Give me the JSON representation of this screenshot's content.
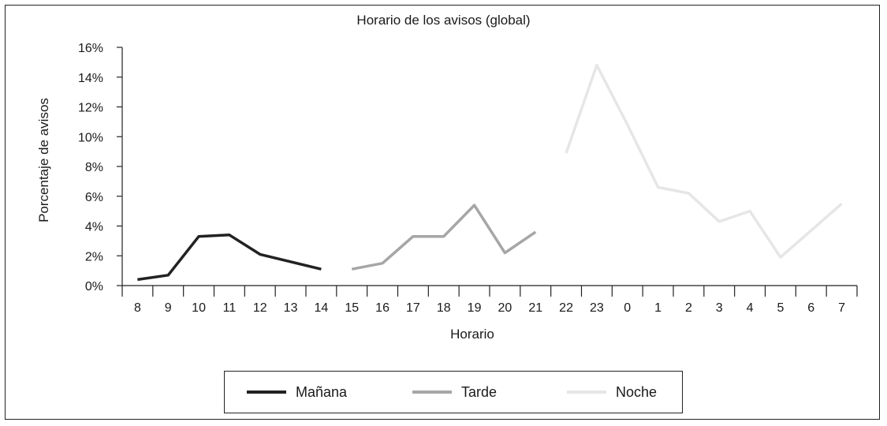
{
  "chart_data": {
    "type": "line",
    "title": "Horario de los avisos (global)",
    "xlabel": "Horario",
    "ylabel": "Porcentaje de avisos",
    "categories": [
      "8",
      "9",
      "10",
      "11",
      "12",
      "13",
      "14",
      "15",
      "16",
      "17",
      "18",
      "19",
      "20",
      "21",
      "22",
      "23",
      "0",
      "1",
      "2",
      "3",
      "4",
      "5",
      "6",
      "7"
    ],
    "ylim": [
      0,
      16
    ],
    "yticks": [
      "0%",
      "2%",
      "4%",
      "6%",
      "8%",
      "10%",
      "12%",
      "14%",
      "16%"
    ],
    "grid": false,
    "legend_position": "bottom",
    "series": [
      {
        "name": "Mañana",
        "color": "#222222",
        "points": [
          [
            "8",
            0.4
          ],
          [
            "9",
            0.7
          ],
          [
            "10",
            3.3
          ],
          [
            "11",
            3.4
          ],
          [
            "12",
            2.1
          ],
          [
            "13",
            1.6
          ],
          [
            "14",
            1.1
          ]
        ]
      },
      {
        "name": "Tarde",
        "color": "#a6a6a6",
        "points": [
          [
            "15",
            1.1
          ],
          [
            "16",
            1.5
          ],
          [
            "17",
            3.3
          ],
          [
            "18",
            3.3
          ],
          [
            "19",
            5.4
          ],
          [
            "20",
            2.2
          ],
          [
            "21",
            3.6
          ]
        ]
      },
      {
        "name": "Noche",
        "color": "#e6e6e6",
        "points": [
          [
            "22",
            8.9
          ],
          [
            "23",
            14.8
          ],
          [
            "0",
            10.8
          ],
          [
            "1",
            6.6
          ],
          [
            "2",
            6.2
          ],
          [
            "3",
            4.3
          ],
          [
            "4",
            5.0
          ],
          [
            "5",
            1.9
          ],
          [
            "6",
            3.7
          ],
          [
            "7",
            5.5
          ]
        ]
      }
    ]
  }
}
